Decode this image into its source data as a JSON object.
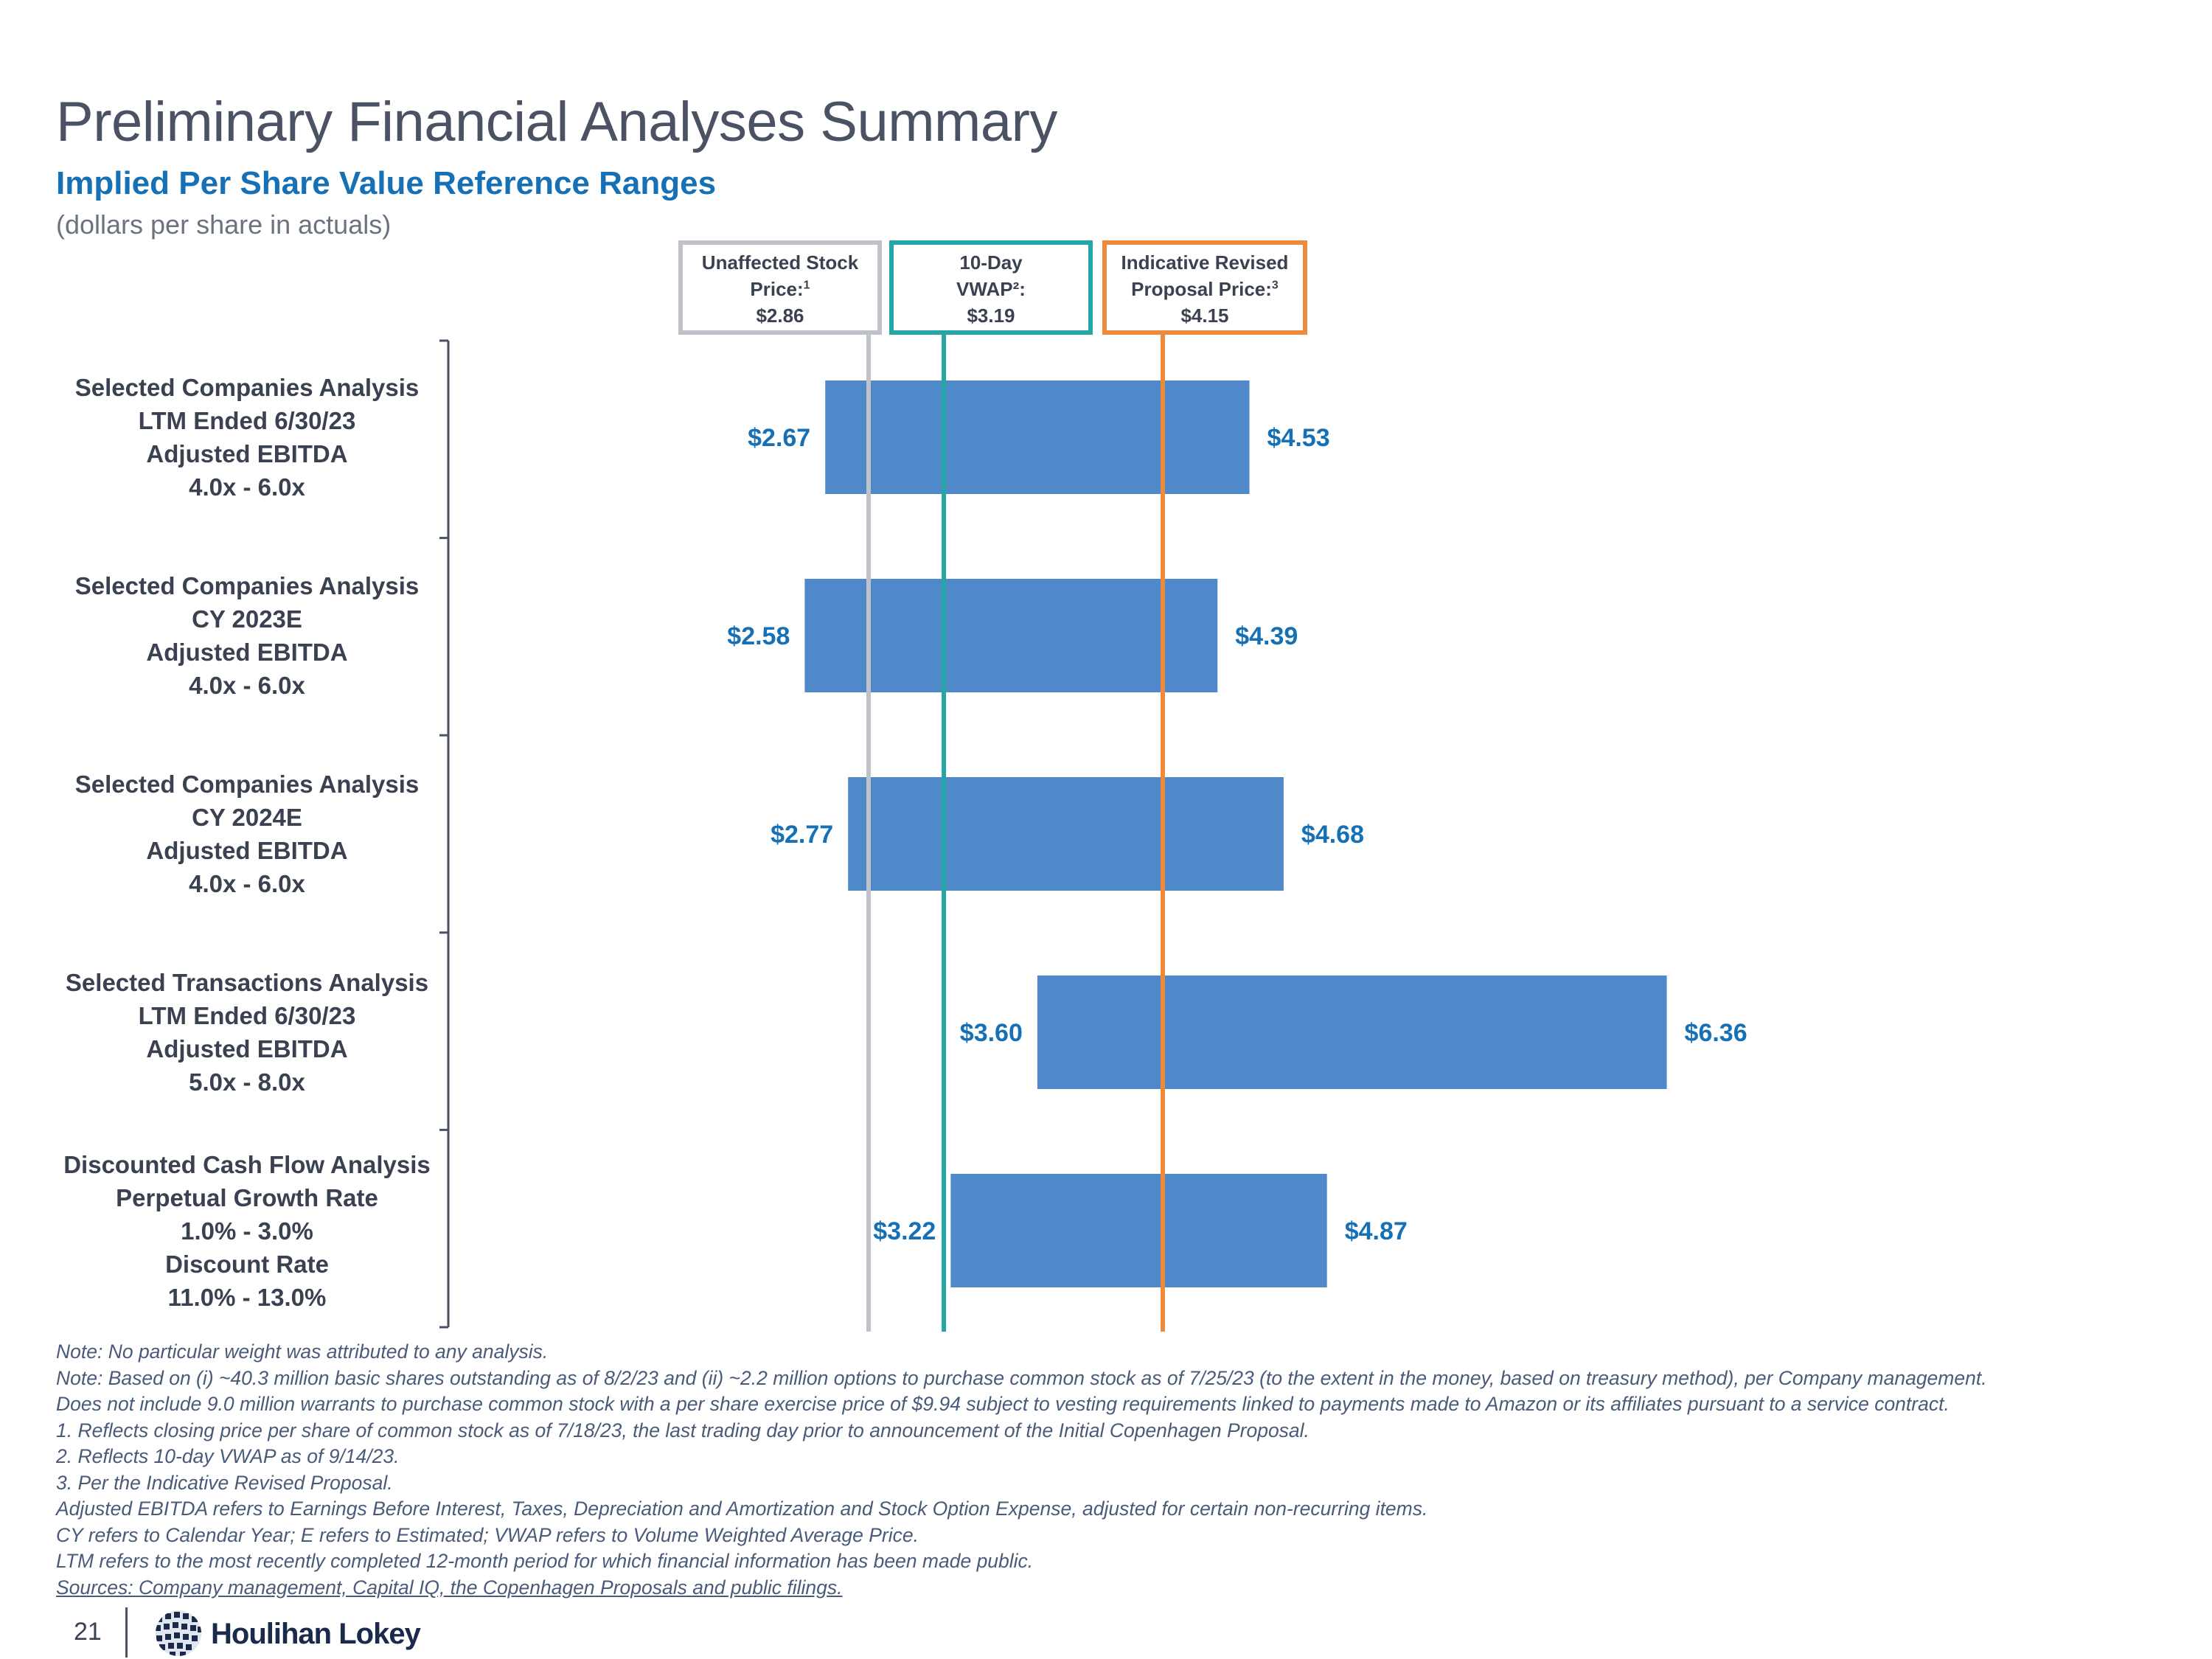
{
  "title": "Preliminary Financial Analyses Summary",
  "subtitle": "Implied Per Share Value Reference Ranges",
  "units": "(dollars per share in actuals)",
  "colors": {
    "bar": "#5089c9",
    "label": "#1670b5",
    "unaffected": "#bfc2c9",
    "vwap": "#26a5a5",
    "proposal": "#ee8a3c"
  },
  "reference_lines": [
    {
      "id": "unaffected",
      "line1": "Unaffected Stock",
      "line2": "Price:",
      "sup": "1",
      "value_label": "$2.86",
      "value": 2.86
    },
    {
      "id": "vwap",
      "line1": "10-Day",
      "line2": "VWAP²:",
      "sup": "",
      "value_label": "$3.19",
      "value": 3.19
    },
    {
      "id": "proposal",
      "line1": "Indicative Revised",
      "line2": "Proposal Price:",
      "sup": "3",
      "value_label": "$4.15",
      "value": 4.15
    }
  ],
  "categories": [
    {
      "lines": [
        "Selected Companies Analysis",
        "LTM Ended 6/30/23",
        "Adjusted EBITDA",
        "4.0x - 6.0x"
      ]
    },
    {
      "lines": [
        "Selected Companies Analysis",
        "CY 2023E",
        "Adjusted EBITDA",
        "4.0x - 6.0x"
      ]
    },
    {
      "lines": [
        "Selected Companies Analysis",
        "CY 2024E",
        "Adjusted EBITDA",
        "4.0x - 6.0x"
      ]
    },
    {
      "lines": [
        "Selected Transactions Analysis",
        "LTM Ended 6/30/23",
        "Adjusted EBITDA",
        "5.0x - 8.0x"
      ]
    },
    {
      "lines": [
        "Discounted Cash Flow Analysis",
        "Perpetual Growth Rate",
        "1.0% - 3.0%",
        "Discount Rate",
        "11.0% - 13.0%"
      ]
    }
  ],
  "chart_data": {
    "type": "bar",
    "orientation": "horizontal-floating",
    "title": "Implied Per Share Value Reference Ranges",
    "xlabel": "",
    "ylabel": "",
    "categories": [
      "Selected Companies Analysis LTM Ended 6/30/23",
      "Selected Companies Analysis CY 2023E",
      "Selected Companies Analysis CY 2024E",
      "Selected Transactions Analysis LTM Ended 6/30/23",
      "Discounted Cash Flow Analysis"
    ],
    "series": [
      {
        "name": "low",
        "values": [
          2.67,
          2.58,
          2.77,
          3.6,
          3.22
        ]
      },
      {
        "name": "high",
        "values": [
          4.53,
          4.39,
          4.68,
          6.36,
          4.87
        ]
      }
    ],
    "low_labels": [
      "$2.67",
      "$2.58",
      "$2.77",
      "$3.60",
      "$3.22"
    ],
    "high_labels": [
      "$4.53",
      "$4.39",
      "$4.68",
      "$6.36",
      "$4.87"
    ],
    "reference_values": [
      2.86,
      3.19,
      4.15
    ],
    "grid": false,
    "legend": "none"
  },
  "notes": [
    "Note: No particular weight was attributed to any analysis.",
    "Note: Based on (i) ~40.3 million basic shares outstanding as of 8/2/23 and (ii) ~2.2 million options to purchase common stock as of 7/25/23 (to the extent in the money, based on treasury method), per Company management.",
    "Does not include 9.0 million warrants to purchase common stock with a per share exercise price of $9.94 subject to vesting requirements linked to payments made to Amazon or its affiliates pursuant to a service contract.",
    "1.  Reflects closing price per share of common stock as of 7/18/23, the last trading day prior to announcement of the Initial Copenhagen Proposal.",
    "2.  Reflects 10-day VWAP as of 9/14/23.",
    "3.  Per the Indicative Revised Proposal.",
    "Adjusted EBITDA refers to Earnings Before Interest, Taxes, Depreciation and Amortization and Stock Option Expense, adjusted for certain non-recurring items.",
    "CY refers to Calendar Year; E refers to Estimated; VWAP refers to Volume Weighted Average Price.",
    "LTM refers to the most recently completed 12-month period for which financial information has been made public.",
    "Sources: Company management, Capital IQ, the Copenhagen Proposals and public filings."
  ],
  "footer": {
    "page_number": "21",
    "logo_text": "Houlihan Lokey"
  }
}
